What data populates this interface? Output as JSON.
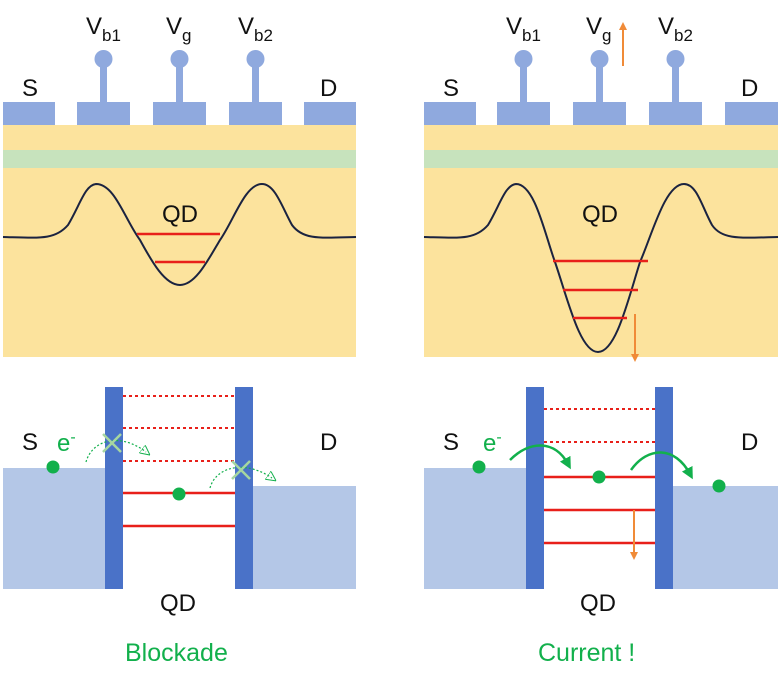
{
  "colors": {
    "electrode": "#8fa9de",
    "substrate": "#fce39d",
    "green_layer": "#c7e3bd",
    "potential_line": "#1b2340",
    "level": "#e8201a",
    "barrier": "#4a72c8",
    "reservoir": "#b4c7e7",
    "electron": "#12b04c",
    "arrow_orange": "#f08b38",
    "cross": "#a6d6a0",
    "caption": "#12b04c"
  },
  "left_panel": {
    "labels": {
      "source": "S",
      "drain": "D",
      "vb1_main": "V",
      "vb1_sub": "b1",
      "vg_main": "V",
      "vg_sub": "g",
      "vb2_main": "V",
      "vb2_sub": "b2",
      "qd_top": "QD"
    },
    "band": {
      "source": "S",
      "drain": "D",
      "electron_main": "e",
      "electron_sup": "-",
      "qd_bottom": "QD"
    },
    "caption": "Blockade"
  },
  "right_panel": {
    "labels": {
      "source": "S",
      "drain": "D",
      "vb1_main": "V",
      "vb1_sub": "b1",
      "vg_main": "V",
      "vg_sub": "g",
      "vb2_main": "V",
      "vb2_sub": "b2",
      "qd_top": "QD"
    },
    "band": {
      "source": "S",
      "drain": "D",
      "electron_main": "e",
      "electron_sup": "-",
      "qd_bottom": "QD"
    },
    "caption": "Current !"
  }
}
